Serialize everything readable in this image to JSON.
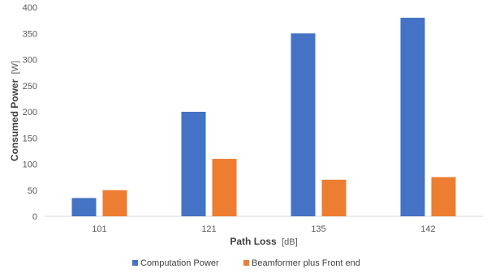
{
  "chart_data": {
    "type": "bar",
    "categories": [
      "101",
      "121",
      "135",
      "142"
    ],
    "series": [
      {
        "name": "Computation Power",
        "values": [
          35,
          200,
          350,
          380
        ],
        "color": "#4472C4"
      },
      {
        "name": "Beamformer plus Front end",
        "values": [
          50,
          110,
          70,
          75
        ],
        "color": "#ED7D31"
      }
    ],
    "xlabel_main": "Path Loss",
    "xlabel_unit": "[dB]",
    "ylabel_main": "Consumed Power",
    "ylabel_unit": "[W]",
    "ylim": [
      0,
      400
    ],
    "yticks": [
      "0",
      "50",
      "100",
      "150",
      "200",
      "250",
      "300",
      "350",
      "400"
    ],
    "grid": false,
    "legend_position": "bottom"
  }
}
